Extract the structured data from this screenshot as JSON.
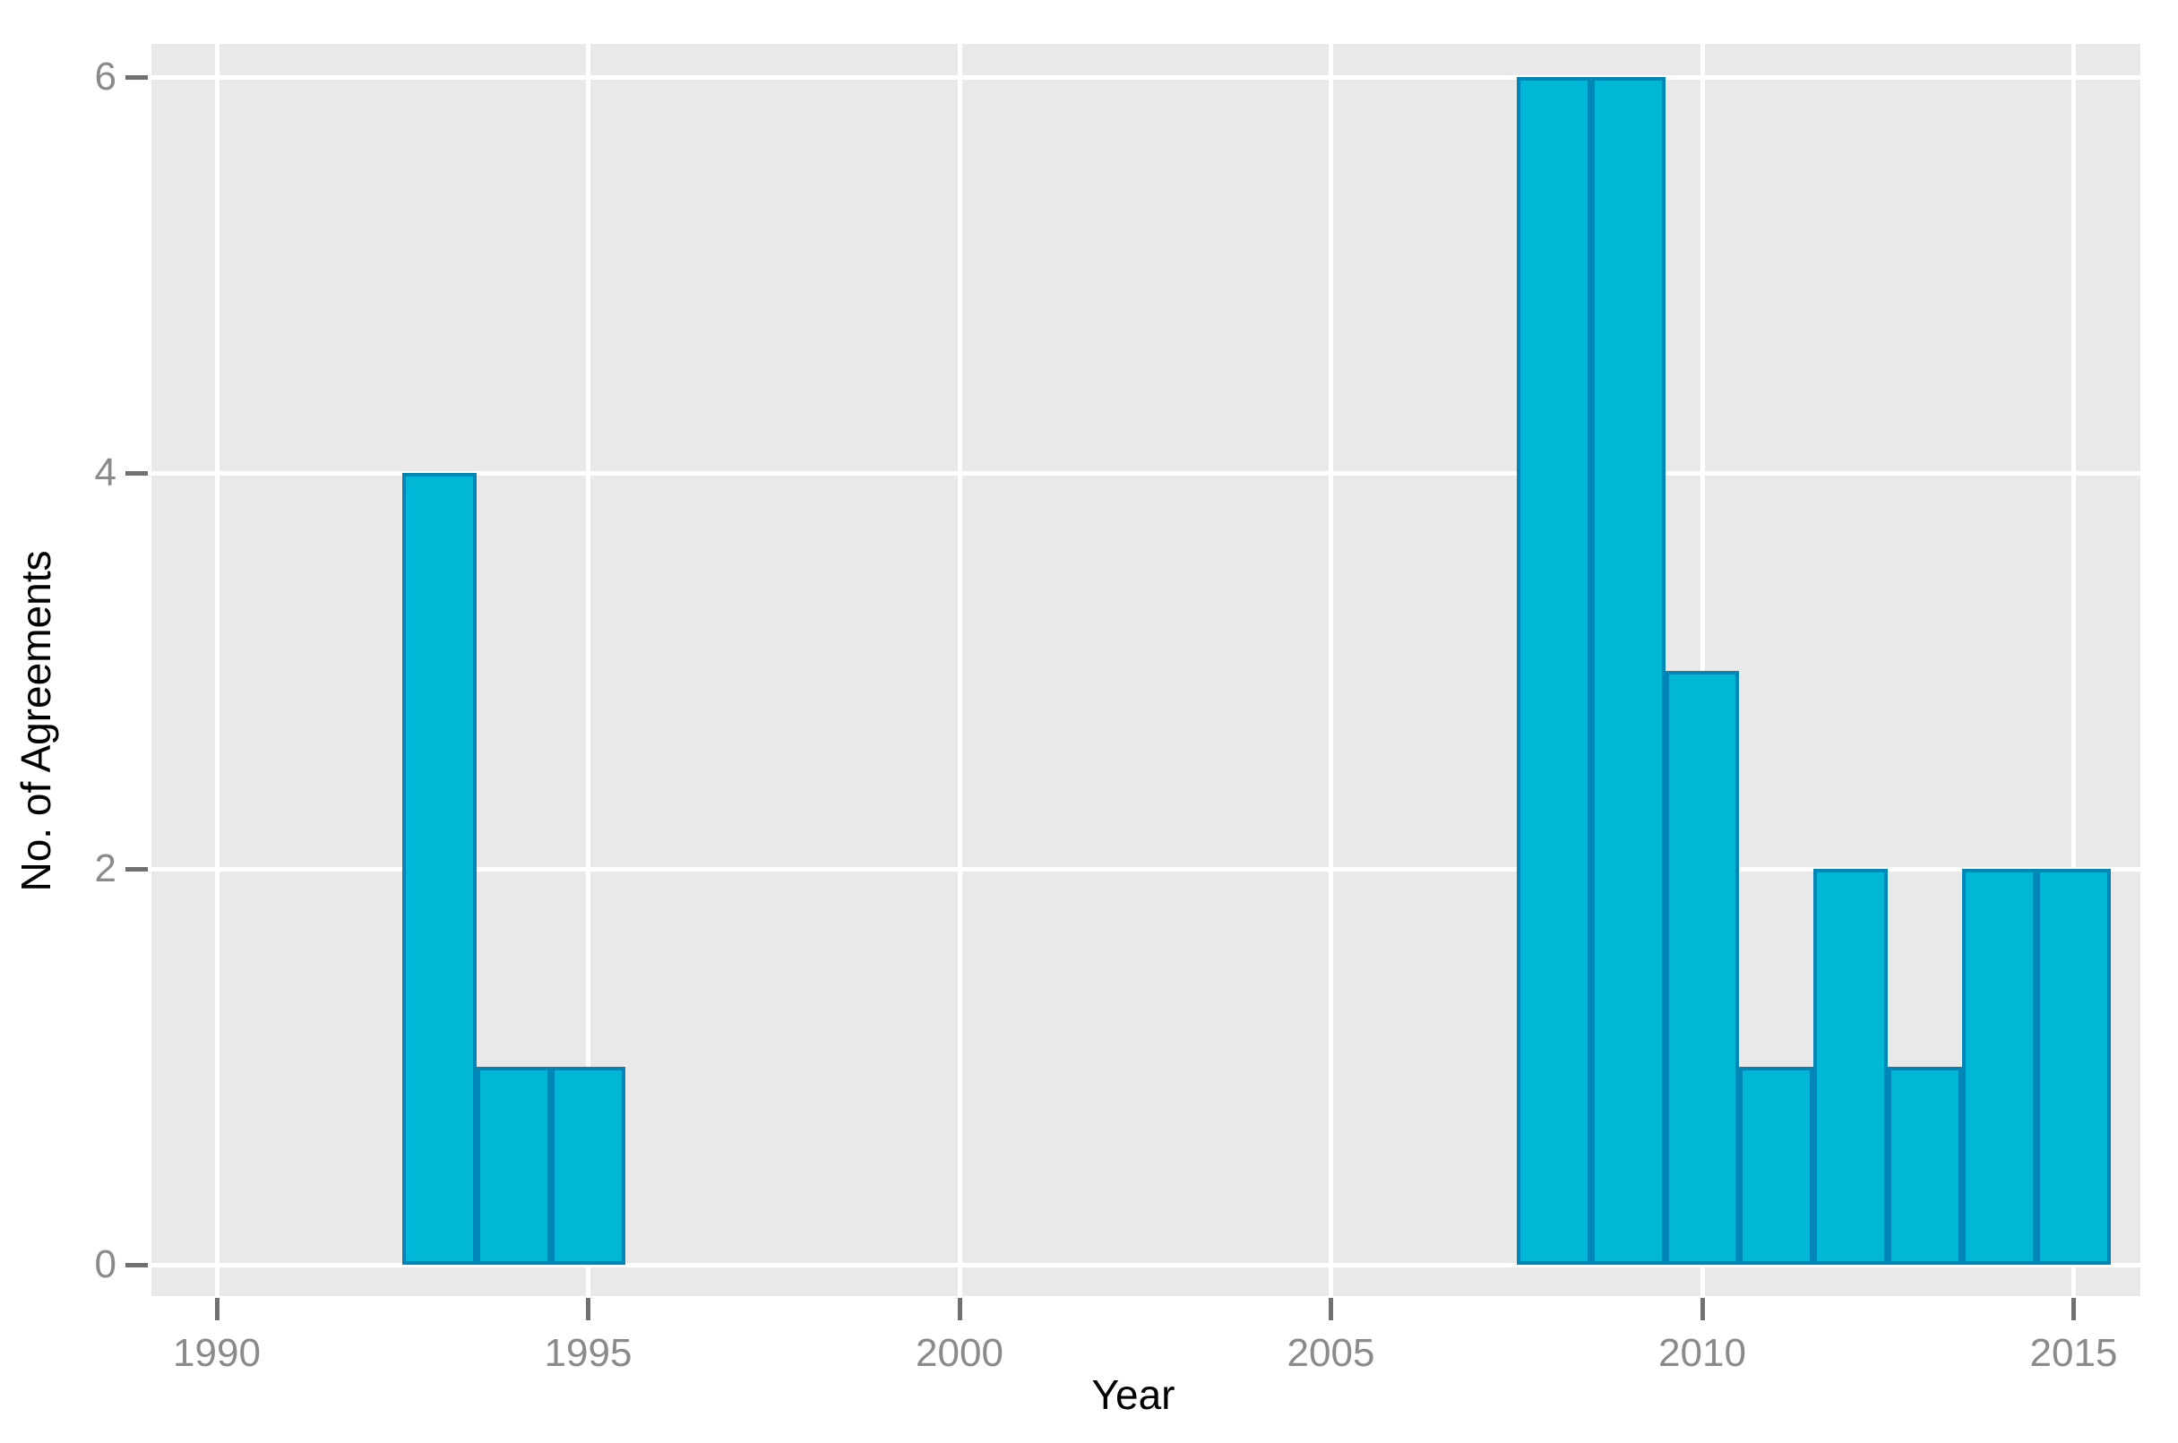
{
  "chart_data": {
    "type": "bar",
    "subtype": "histogram",
    "title": "",
    "xlabel": "Year",
    "ylabel": "No. of Agreements",
    "x_ticks": [
      1990,
      1995,
      2000,
      2005,
      2010,
      2015
    ],
    "y_ticks": [
      0,
      2,
      4,
      6
    ],
    "bin_width_years": 1,
    "x_range_years": [
      1989.1,
      2015.9
    ],
    "y_range": [
      -0.16,
      6.17
    ],
    "grid": "major-only",
    "legend_position": "none",
    "bars": [
      {
        "year": 1993,
        "count": 4
      },
      {
        "year": 1994,
        "count": 1
      },
      {
        "year": 1995,
        "count": 1
      },
      {
        "year": 2008,
        "count": 6
      },
      {
        "year": 2009,
        "count": 6
      },
      {
        "year": 2010,
        "count": 3
      },
      {
        "year": 2011,
        "count": 1
      },
      {
        "year": 2012,
        "count": 2
      },
      {
        "year": 2013,
        "count": 1
      },
      {
        "year": 2014,
        "count": 2
      },
      {
        "year": 2015,
        "count": 2
      }
    ],
    "colors": {
      "bar_fill": "#00b7d6",
      "bar_stroke": "#0087b8",
      "panel_bg": "#e9e9e9",
      "gridline": "#ffffff",
      "tick_mark": "#707070",
      "tick_label": "#8a8a8a",
      "axis_title": "#000000",
      "page_bg": "#ffffff"
    }
  }
}
